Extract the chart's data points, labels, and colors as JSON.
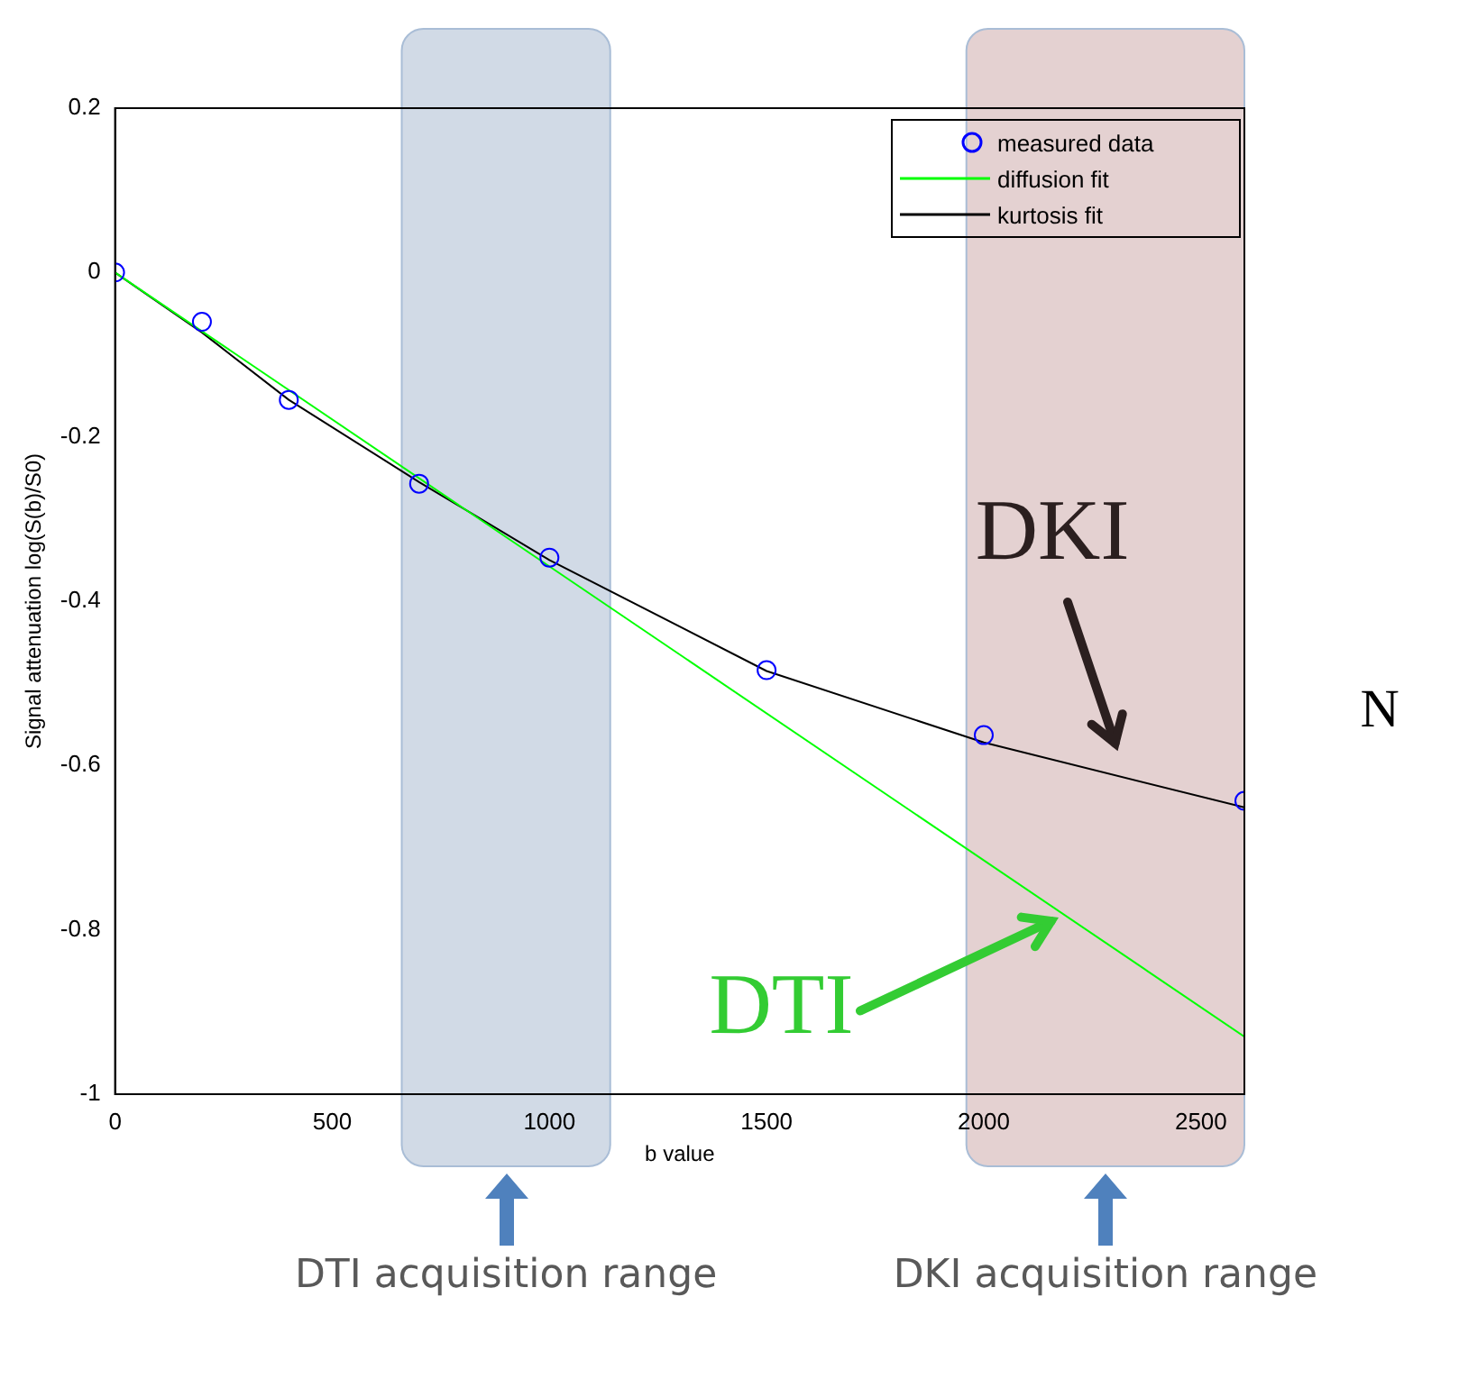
{
  "chart_data": {
    "type": "scatter",
    "xlabel": "b value",
    "ylabel": "Signal attenuation log(S(b)/S0)",
    "xlim": [
      0,
      2600
    ],
    "xticks": [
      0,
      500,
      1000,
      1500,
      2000,
      2500
    ],
    "ylim": [
      -1,
      0.2
    ],
    "yticks": [
      -1,
      -0.8,
      -0.6,
      -0.4,
      -0.2,
      0,
      0.2
    ],
    "grid": false,
    "legend": "top right",
    "series": [
      {
        "name": "measured data",
        "type": "scatter",
        "marker": "circle",
        "color": "#0000ff",
        "x": [
          0,
          200,
          400,
          700,
          1000,
          1500,
          2000,
          2600
        ],
        "values": [
          0,
          -0.06,
          -0.155,
          -0.257,
          -0.347,
          -0.484,
          -0.563,
          -0.643
        ]
      },
      {
        "name": "diffusion fit",
        "type": "line",
        "marker": "none",
        "color": "#00ff00",
        "x": [
          0,
          2600
        ],
        "values": [
          0,
          -0.93
        ]
      },
      {
        "name": "kurtosis fit",
        "type": "line",
        "marker": "none",
        "color": "#000000",
        "x": [
          0,
          200,
          400,
          700,
          1000,
          1500,
          2000,
          2600
        ],
        "values": [
          0,
          -0.073,
          -0.155,
          -0.255,
          -0.35,
          -0.485,
          -0.572,
          -0.651
        ]
      }
    ],
    "bands": [
      {
        "axis": "x",
        "from": 660,
        "to": 1140,
        "label": "DTI acquisition range",
        "color": "#c9d3e2"
      },
      {
        "axis": "x",
        "from": 1960,
        "to": 2600,
        "label": "DKI acquisition range",
        "color": "#dfc9c9"
      }
    ],
    "annotations": [
      "DKI",
      "DTI",
      "N"
    ]
  }
}
